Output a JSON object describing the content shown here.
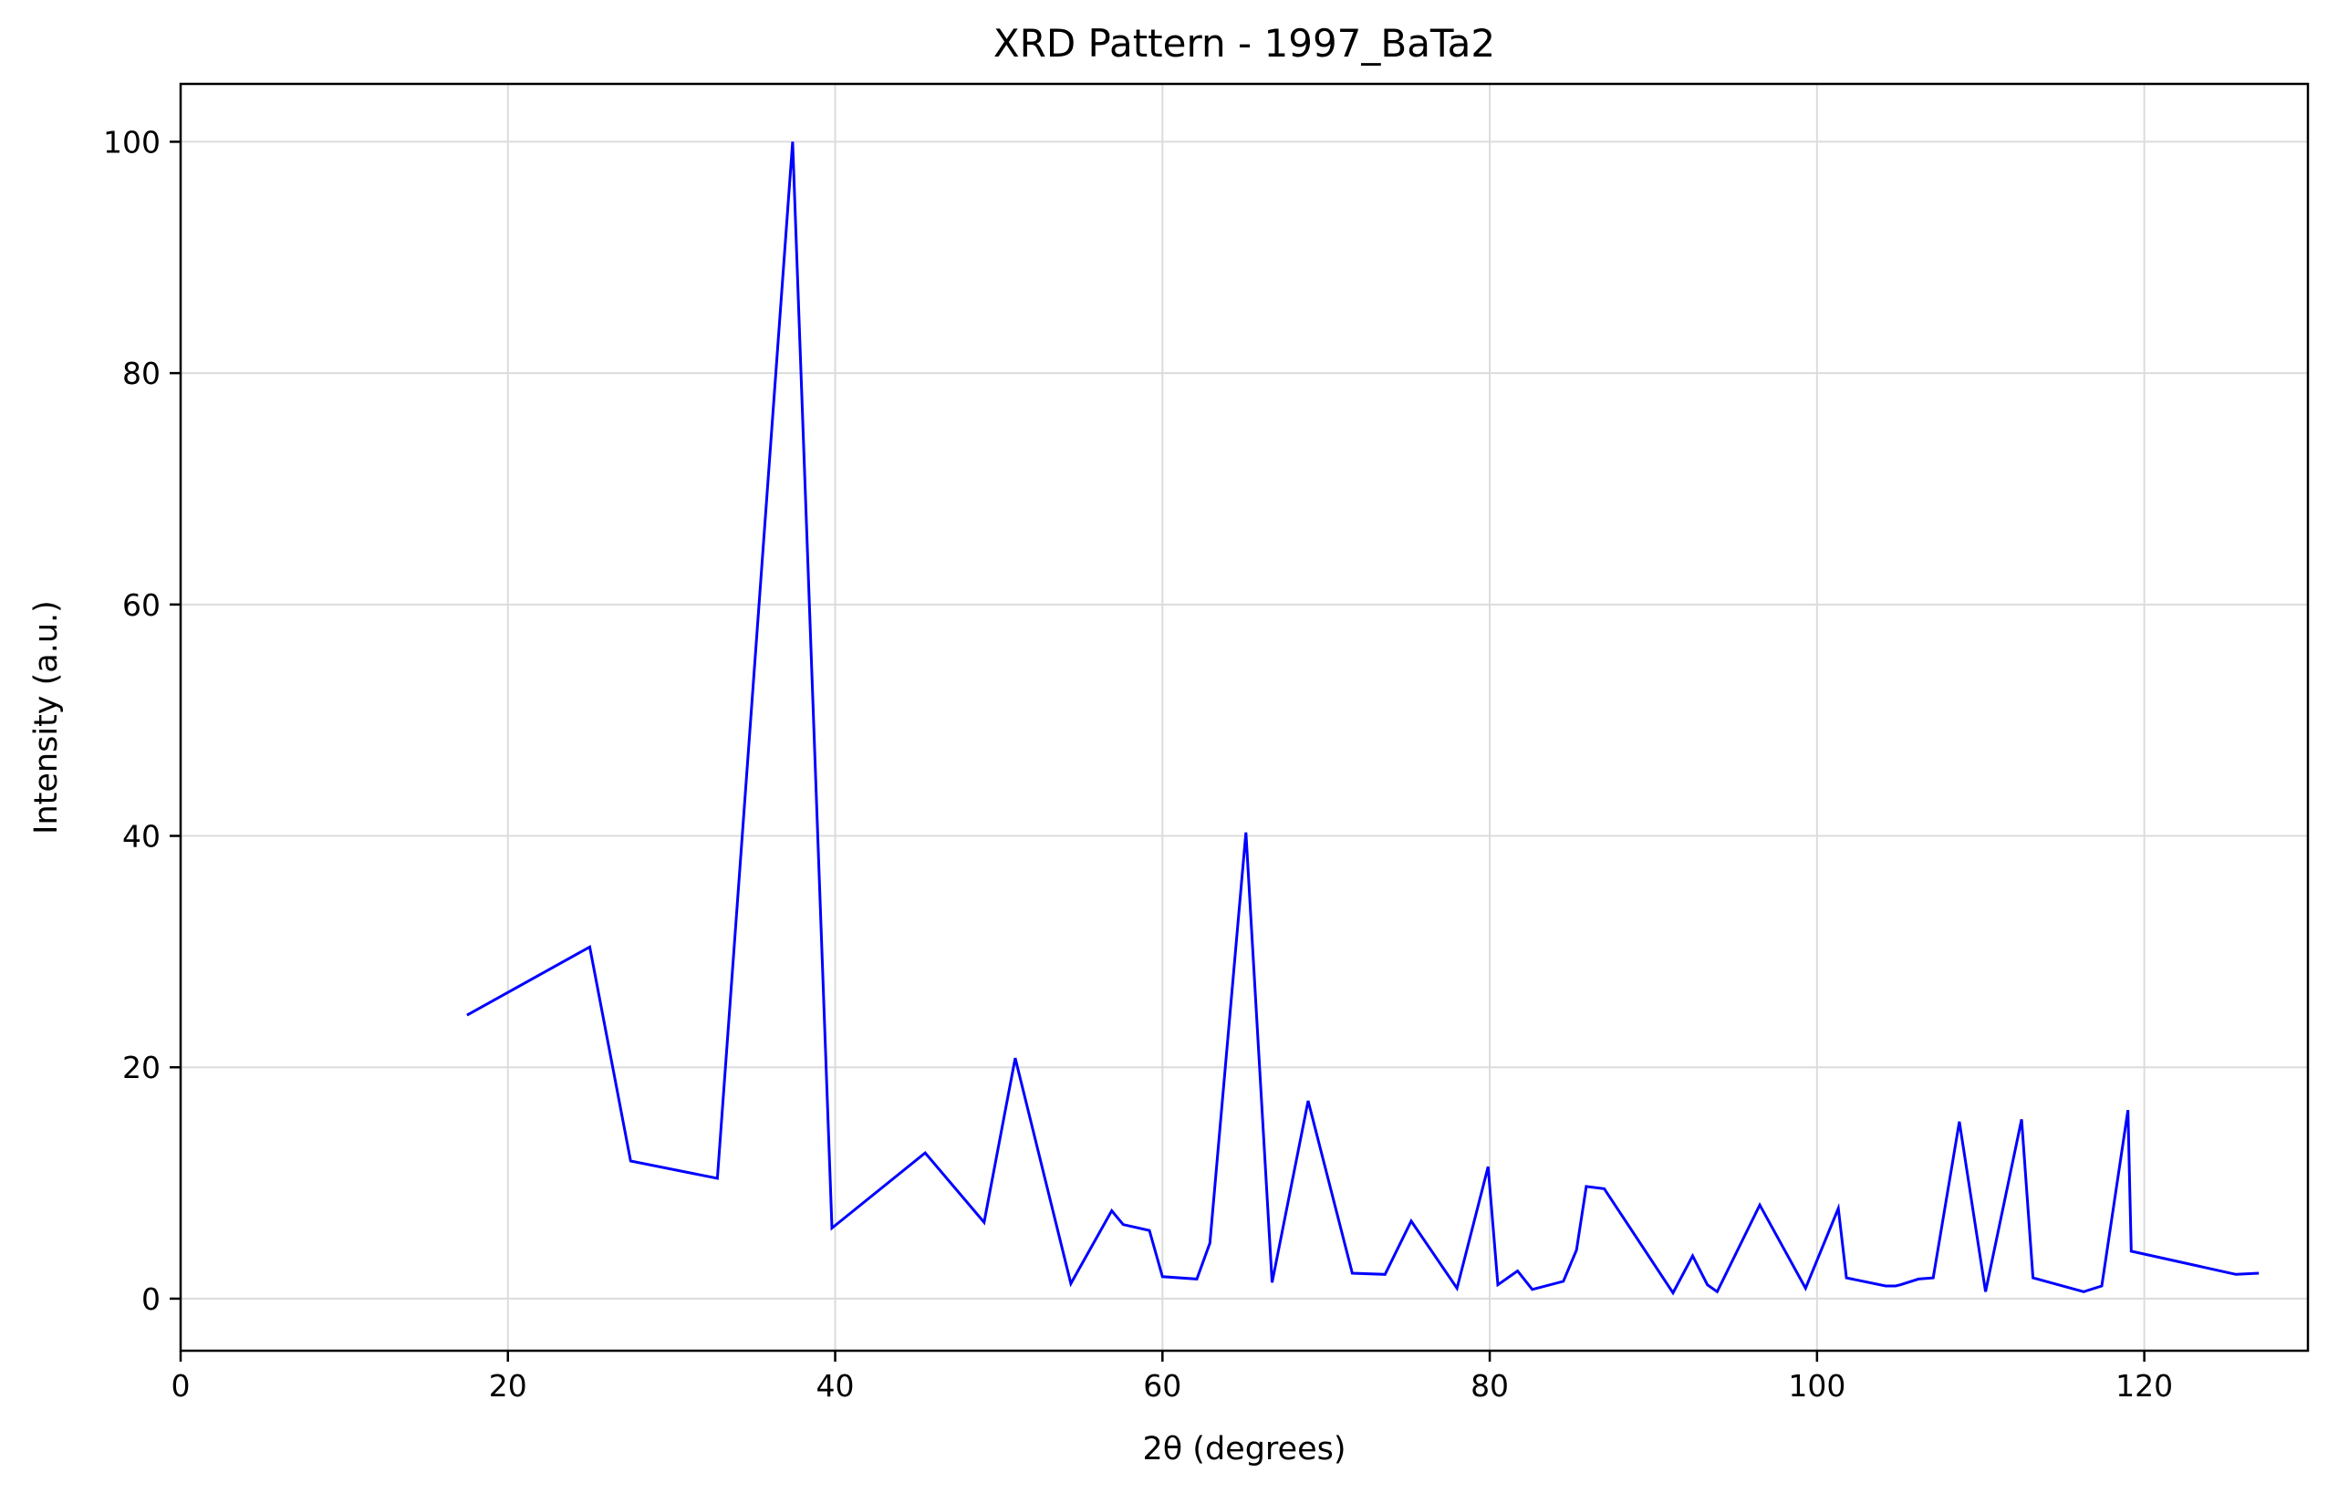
{
  "chart_data": {
    "type": "line",
    "title": "XRD Pattern - 1997_BaTa2",
    "xlabel": "2θ (degrees)",
    "ylabel": "Intensity (a.u.)",
    "xlim": [
      0,
      130
    ],
    "ylim": [
      -4.5,
      105
    ],
    "xticks": [
      0,
      20,
      40,
      60,
      80,
      100,
      120
    ],
    "yticks": [
      0,
      20,
      40,
      60,
      80,
      100
    ],
    "grid": true,
    "line_color": "#0000ff",
    "series": [
      {
        "x": [
          17.5,
          25.0,
          27.5,
          32.8,
          37.4,
          39.8,
          45.5,
          49.1,
          51.0,
          54.4,
          56.9,
          57.6,
          59.2,
          60.0,
          62.1,
          62.9,
          65.1,
          66.7,
          68.9,
          71.6,
          73.6,
          75.2,
          78.0,
          79.9,
          80.5,
          81.7,
          82.6,
          84.5,
          85.3,
          85.9,
          87.0,
          91.2,
          92.4,
          93.3,
          93.9,
          96.5,
          99.3,
          101.3,
          101.8,
          104.2,
          104.8,
          105.1,
          106.2,
          107.1,
          108.7,
          110.3,
          112.5,
          113.2,
          116.3,
          117.4,
          119.0,
          119.2,
          125.6,
          127.0
        ],
        "y": [
          24.5,
          30.4,
          11.9,
          10.4,
          100.0,
          6.1,
          12.6,
          6.6,
          20.8,
          1.3,
          7.6,
          6.4,
          5.9,
          1.9,
          1.7,
          4.8,
          40.3,
          1.4,
          17.1,
          2.2,
          2.1,
          6.7,
          0.9,
          11.4,
          1.2,
          2.4,
          0.8,
          1.5,
          4.2,
          9.7,
          9.5,
          0.5,
          3.7,
          1.2,
          0.6,
          8.1,
          0.9,
          7.8,
          1.8,
          1.1,
          1.1,
          1.2,
          1.7,
          1.8,
          15.3,
          0.6,
          15.5,
          1.8,
          0.6,
          1.1,
          16.3,
          4.1,
          2.1,
          2.2
        ]
      }
    ]
  }
}
